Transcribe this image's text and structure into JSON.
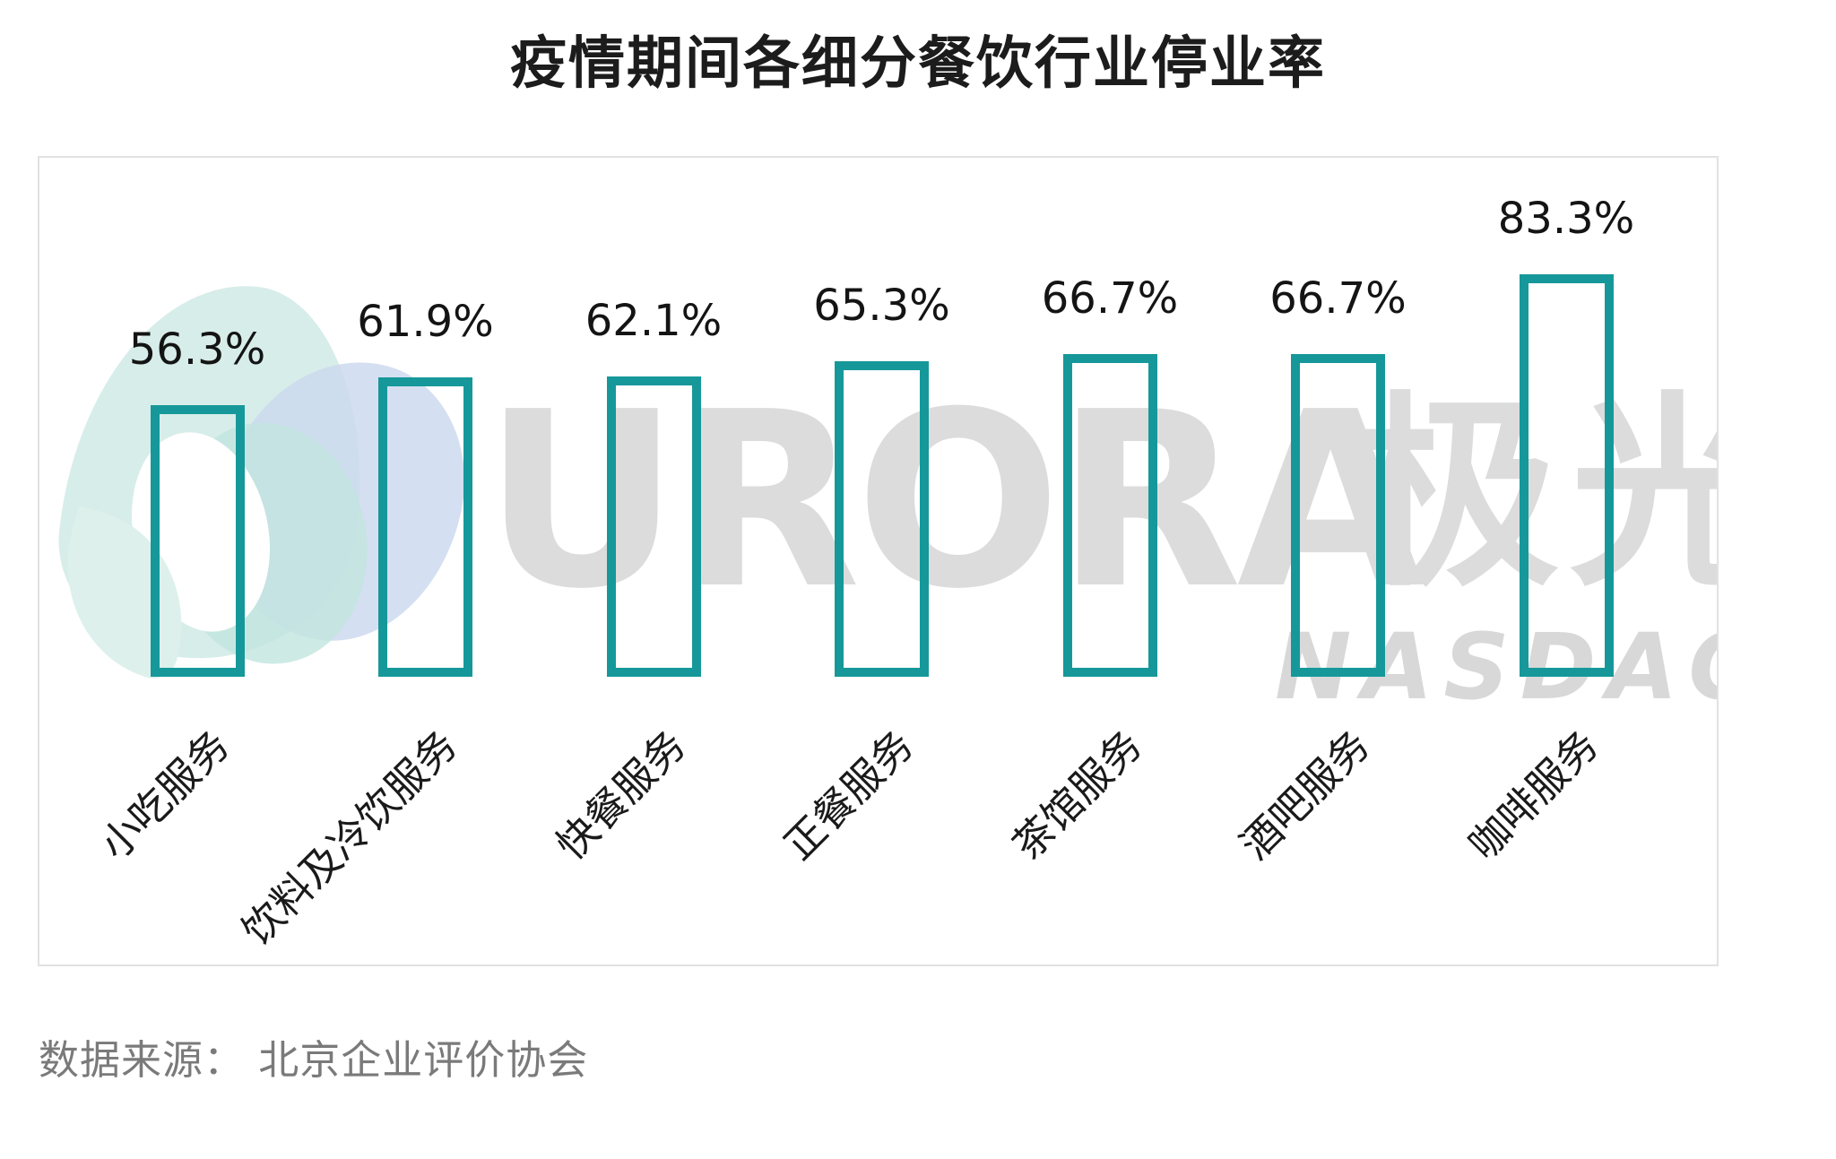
{
  "title": "疫情期间各细分餐饮行业停业率",
  "source": "数据来源： 北京企业评价协会",
  "watermark": {
    "brand_latin": "URORA",
    "brand_cn": "极光",
    "ticker": "NASDAQ:JG"
  },
  "colors": {
    "bar_outline": "#16989a",
    "watermark_gray": "#dcdcdc",
    "label_text": "#141414",
    "source_text": "#7a7a7a",
    "logo_mint": "#d7ede9",
    "logo_blue": "#cdd9ef",
    "logo_teal": "#c2e5df"
  },
  "chart_data": {
    "type": "bar",
    "title": "疫情期间各细分餐饮行业停业率",
    "categories": [
      "小吃服务",
      "饮料及冷饮服务",
      "快餐服务",
      "正餐服务",
      "茶馆服务",
      "酒吧服务",
      "咖啡服务"
    ],
    "values": [
      56.3,
      61.9,
      62.1,
      65.3,
      66.7,
      66.7,
      83.3
    ],
    "value_labels": [
      "56.3%",
      "61.9%",
      "62.1%",
      "65.3%",
      "66.7%",
      "66.7%",
      "83.3%"
    ],
    "xlabel": "",
    "ylabel": "",
    "ylim": [
      0,
      100
    ],
    "grid": false,
    "legend": false,
    "bar_style": "outlined",
    "x_tick_rotation_deg": 45
  }
}
